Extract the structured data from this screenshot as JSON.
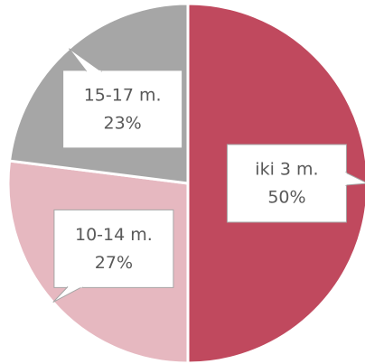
{
  "chart_data": {
    "type": "pie",
    "categories": [
      "iki 3 m.",
      "10-14 m.",
      "15-17 m."
    ],
    "values": [
      50,
      27,
      23
    ],
    "value_labels": [
      "50%",
      "27%",
      "23%"
    ],
    "colors": [
      "#c0495e",
      "#e6b8c0",
      "#a6a6a6"
    ]
  }
}
